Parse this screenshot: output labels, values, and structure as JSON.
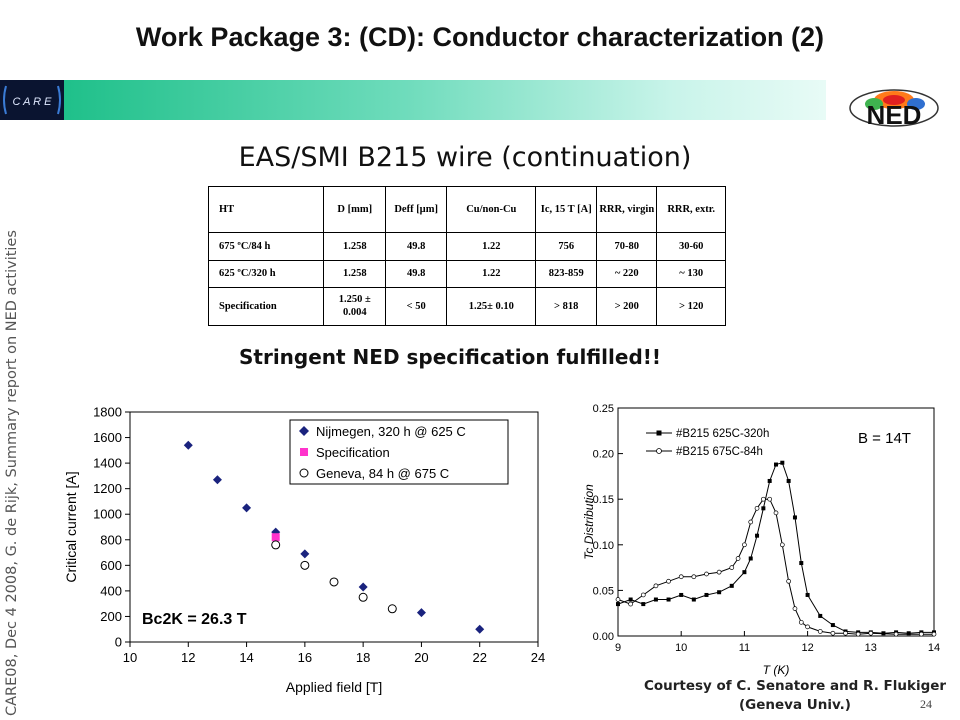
{
  "slide": {
    "title": "Work Package 3: (CD): Conductor characterization (2)",
    "subtitle": "EAS/SMI B215 wire (continuation)",
    "highlight": "Stringent NED specification fulfilled!!",
    "side_note": "CARE08, Dec 4 2008, G. de Rijk, Summary report on NED activities",
    "courtesy_line1": "Courtesy of C. Senatore and R. Flukiger",
    "courtesy_line2": "(Geneva Univ.)",
    "page_number": "24",
    "logos": {
      "left": "C A R E",
      "right": "NED"
    },
    "colors": {
      "banner_start": "#1fc08a",
      "banner_end": "#e8fbf6",
      "nijmegen": "#1a237e",
      "specification": "#ff33cc"
    }
  },
  "table": {
    "headers": [
      "HT",
      "D [mm]",
      "Deff [µm]",
      "Cu/non-Cu",
      "Ic, 15 T [A]",
      "RRR, virgin",
      "RRR, extr."
    ],
    "rows": [
      [
        "675 ºC/84 h",
        "1.258",
        "49.8",
        "1.22",
        "756",
        "70-80",
        "30-60"
      ],
      [
        "625 ºC/320 h",
        "1.258",
        "49.8",
        "1.22",
        "823-859",
        "~ 220",
        "~ 130"
      ],
      [
        "Specification",
        "1.250 ± 0.004",
        "< 50",
        "1.25± 0.10",
        "> 818",
        "> 200",
        "> 120"
      ]
    ]
  },
  "chart_data": [
    {
      "type": "scatter",
      "xlabel": "Applied field [T]",
      "ylabel": "Critical current [A]",
      "xlim": [
        10,
        24
      ],
      "ylim": [
        0,
        1800
      ],
      "xticks": [
        10,
        12,
        14,
        16,
        18,
        20,
        22,
        24
      ],
      "yticks": [
        0,
        200,
        400,
        600,
        800,
        1000,
        1200,
        1400,
        1600,
        1800
      ],
      "legend_position": "top-right",
      "annotation": "Bc2K = 26.3 T",
      "series": [
        {
          "name": "Nijmegen, 320 h @ 625 C",
          "marker": "diamond",
          "x": [
            12,
            13,
            14,
            15,
            16,
            18,
            20,
            22
          ],
          "y": [
            1540,
            1270,
            1050,
            860,
            690,
            430,
            230,
            100
          ]
        },
        {
          "name": "Specification",
          "marker": "square",
          "x": [
            15
          ],
          "y": [
            820
          ]
        },
        {
          "name": "Geneva, 84 h @ 675 C",
          "marker": "circle",
          "x": [
            15,
            16,
            17,
            18,
            19
          ],
          "y": [
            760,
            600,
            470,
            350,
            260
          ]
        }
      ]
    },
    {
      "type": "line",
      "xlabel": "T (K)",
      "ylabel": "Tc Distribution",
      "xlim": [
        9,
        14
      ],
      "ylim": [
        0,
        0.25
      ],
      "xticks": [
        9,
        10,
        11,
        12,
        13,
        14
      ],
      "yticks": [
        "0.00",
        "0.05",
        "0.10",
        "0.15",
        "0.20",
        "0.25"
      ],
      "legend_position": "top-left",
      "annotation": "B = 14T",
      "series": [
        {
          "name": "#B215 625C-320h",
          "marker": "square-filled",
          "x": [
            9.0,
            9.2,
            9.4,
            9.6,
            9.8,
            10.0,
            10.2,
            10.4,
            10.6,
            10.8,
            11.0,
            11.1,
            11.2,
            11.3,
            11.4,
            11.5,
            11.6,
            11.7,
            11.8,
            11.9,
            12.0,
            12.2,
            12.4,
            12.6,
            12.8,
            13.0,
            13.2,
            13.4,
            13.6,
            13.8,
            14.0
          ],
          "y": [
            0.035,
            0.04,
            0.035,
            0.04,
            0.04,
            0.045,
            0.04,
            0.045,
            0.048,
            0.055,
            0.07,
            0.085,
            0.11,
            0.14,
            0.17,
            0.188,
            0.19,
            0.17,
            0.13,
            0.08,
            0.045,
            0.022,
            0.012,
            0.005,
            0.004,
            0.004,
            0.003,
            0.004,
            0.003,
            0.004,
            0.004
          ]
        },
        {
          "name": "#B215 675C-84h",
          "marker": "circle-open",
          "x": [
            9.0,
            9.2,
            9.4,
            9.6,
            9.8,
            10.0,
            10.2,
            10.4,
            10.6,
            10.8,
            10.9,
            11.0,
            11.1,
            11.2,
            11.3,
            11.4,
            11.5,
            11.6,
            11.7,
            11.8,
            11.9,
            12.0,
            12.2,
            12.4,
            12.6,
            12.8,
            13.0,
            13.4,
            13.8,
            14.0
          ],
          "y": [
            0.04,
            0.035,
            0.045,
            0.055,
            0.06,
            0.065,
            0.065,
            0.068,
            0.07,
            0.075,
            0.085,
            0.1,
            0.125,
            0.14,
            0.15,
            0.15,
            0.135,
            0.1,
            0.06,
            0.03,
            0.015,
            0.01,
            0.005,
            0.003,
            0.003,
            0.002,
            0.003,
            0.002,
            0.002,
            0.002
          ]
        }
      ]
    }
  ]
}
